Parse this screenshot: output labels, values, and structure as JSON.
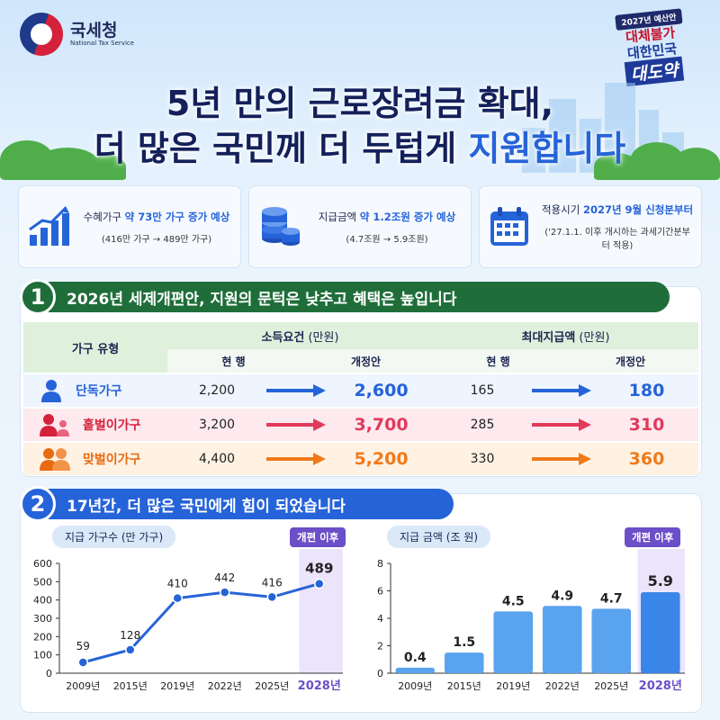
{
  "logo": {
    "name_kr": "국세청",
    "name_en": "National Tax Service"
  },
  "promo": {
    "tag": "2027년 예산안",
    "line1": "대체불가",
    "line2": "대한민국",
    "line3": "대도약"
  },
  "title": {
    "line1": "5년 만의 근로장려금 확대,",
    "line2_a": "더 많은 국민께 더 두텁게 ",
    "line2_b": "지원합니다"
  },
  "cards": [
    {
      "icon": "growth-chart-icon",
      "prefix": "수혜가구 ",
      "highlight": "약 73만 가구 증가 예상",
      "sub": "(416만 가구 → 489만 가구)"
    },
    {
      "icon": "coin-stack-icon",
      "prefix": "지급금액 ",
      "highlight": "약 1.2조원 증가 예상",
      "sub": "(4.7조원 → 5.9조원)"
    },
    {
      "icon": "calendar-icon",
      "prefix": "적용시기 ",
      "highlight": "2027년 9월 신청분부터",
      "sub": "('27.1.1. 이후 개시하는 과세기간분부터 적용)"
    }
  ],
  "section1": {
    "num": "1",
    "title": "2026년 세제개편안, 지원의 문턱은 낮추고 혜택은 높입니다",
    "table": {
      "col_type": "가구 유형",
      "group1": "소득요건",
      "group1_unit": " (만원)",
      "group2": "최대지급액",
      "group2_unit": " (만원)",
      "current": "현  행",
      "proposed": "개정안",
      "rows": [
        {
          "name": "단독가구",
          "inc_cur": "2,200",
          "inc_new": "2,600",
          "max_cur": "165",
          "max_new": "180"
        },
        {
          "name": "홑벌이가구",
          "inc_cur": "3,200",
          "inc_new": "3,700",
          "max_cur": "285",
          "max_new": "310"
        },
        {
          "name": "맞벌이가구",
          "inc_cur": "4,400",
          "inc_new": "5,200",
          "max_cur": "330",
          "max_new": "360"
        }
      ]
    }
  },
  "section2": {
    "num": "2",
    "title": "17년간, 더 많은 국민에게 힘이 되었습니다",
    "after_tag": "개편 이후"
  },
  "chart_data": [
    {
      "type": "line",
      "title": "지급 가구수 (만 가구)",
      "categories": [
        "2009년",
        "2015년",
        "2019년",
        "2022년",
        "2025년",
        "2028년"
      ],
      "values": [
        59,
        128,
        410,
        442,
        416,
        489
      ],
      "ylim": [
        0,
        600
      ],
      "yticks": [
        0,
        100,
        200,
        300,
        400,
        500,
        600
      ],
      "grid": false,
      "highlight_category": "2028년"
    },
    {
      "type": "bar",
      "title": "지급 금액 (조 원)",
      "categories": [
        "2009년",
        "2015년",
        "2019년",
        "2022년",
        "2025년",
        "2028년"
      ],
      "values": [
        0.4,
        1.5,
        4.5,
        4.9,
        4.7,
        5.9
      ],
      "ylim": [
        0,
        8
      ],
      "yticks": [
        0,
        2,
        4,
        6,
        8
      ],
      "grid": false,
      "highlight_category": "2028년"
    }
  ],
  "colors": {
    "blue": "#2563d8",
    "red": "#e23a5a",
    "orange": "#f07a1a",
    "green": "#1f6e3a",
    "purple": "#6b4fc8",
    "navy": "#14205a"
  }
}
